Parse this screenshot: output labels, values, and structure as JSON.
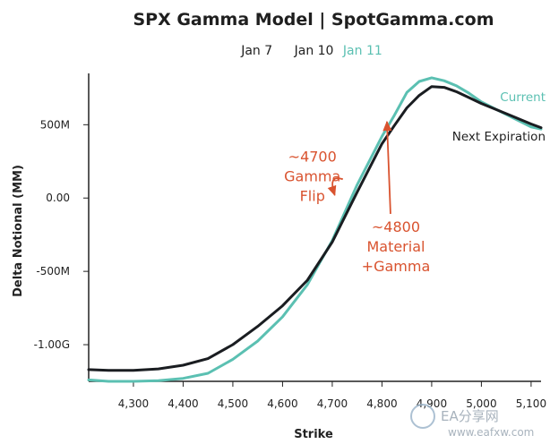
{
  "chart_data": {
    "type": "line",
    "title": "SPX Gamma Model | SpotGamma.com",
    "subtitle_items": [
      {
        "label": "Jan 7",
        "color": "#1f1f1f"
      },
      {
        "label": "Jan 10",
        "color": "#1f1f1f"
      },
      {
        "label": "Jan 11",
        "color": "#5bc0b2"
      }
    ],
    "xlabel": "Strike",
    "ylabel": "Delta Notional (MM)",
    "xlim": [
      4210,
      5120
    ],
    "ylim": [
      -1250,
      850
    ],
    "xticks": [
      4300,
      4400,
      4500,
      4600,
      4700,
      4800,
      4900,
      5000,
      5100
    ],
    "xtick_labels": [
      "4,300",
      "4,400",
      "4,500",
      "4,600",
      "4,700",
      "4,800",
      "4,900",
      "5,000",
      "5,100"
    ],
    "yticks": [
      500,
      0,
      -500,
      -1000
    ],
    "ytick_labels": [
      "500M",
      "0.00",
      "-500M",
      "-1.00G"
    ],
    "series": [
      {
        "name": "Current",
        "color": "#5bc0b2",
        "points": [
          [
            4210,
            -1240
          ],
          [
            4250,
            -1250
          ],
          [
            4300,
            -1250
          ],
          [
            4350,
            -1245
          ],
          [
            4400,
            -1230
          ],
          [
            4450,
            -1195
          ],
          [
            4500,
            -1100
          ],
          [
            4550,
            -975
          ],
          [
            4600,
            -810
          ],
          [
            4650,
            -590
          ],
          [
            4700,
            -290
          ],
          [
            4750,
            90
          ],
          [
            4800,
            420
          ],
          [
            4825,
            565
          ],
          [
            4850,
            720
          ],
          [
            4875,
            795
          ],
          [
            4900,
            820
          ],
          [
            4925,
            800
          ],
          [
            4950,
            765
          ],
          [
            4975,
            715
          ],
          [
            5000,
            655
          ],
          [
            5050,
            570
          ],
          [
            5100,
            485
          ],
          [
            5120,
            470
          ]
        ]
      },
      {
        "name": "Next Expiration",
        "color": "#1a1d21",
        "points": [
          [
            4210,
            -1170
          ],
          [
            4250,
            -1175
          ],
          [
            4300,
            -1175
          ],
          [
            4350,
            -1165
          ],
          [
            4400,
            -1140
          ],
          [
            4450,
            -1095
          ],
          [
            4500,
            -1000
          ],
          [
            4550,
            -875
          ],
          [
            4600,
            -735
          ],
          [
            4650,
            -560
          ],
          [
            4700,
            -300
          ],
          [
            4750,
            40
          ],
          [
            4800,
            370
          ],
          [
            4825,
            495
          ],
          [
            4850,
            615
          ],
          [
            4875,
            700
          ],
          [
            4900,
            760
          ],
          [
            4925,
            755
          ],
          [
            4950,
            725
          ],
          [
            4975,
            685
          ],
          [
            5000,
            645
          ],
          [
            5050,
            575
          ],
          [
            5100,
            505
          ],
          [
            5120,
            480
          ]
        ]
      }
    ],
    "annotations": [
      {
        "lines": [
          "~4700",
          "Gamma",
          "Flip"
        ],
        "color": "#d9532f",
        "x": 4660,
        "y": 250,
        "arrow_to": [
          4705,
          20
        ]
      },
      {
        "lines": [
          "~4800",
          "Material",
          "+Gamma"
        ],
        "color": "#d9532f",
        "x": 4828,
        "y": -230,
        "arrow_to": [
          4810,
          520
        ]
      }
    ],
    "series_labels": [
      {
        "text": "Current",
        "color": "#5bc0b2"
      },
      {
        "text": "Next Expiration",
        "color": "#1f1f1f"
      }
    ]
  },
  "watermark": {
    "brand": "EA分享网",
    "url": "www.eafxw.com"
  }
}
